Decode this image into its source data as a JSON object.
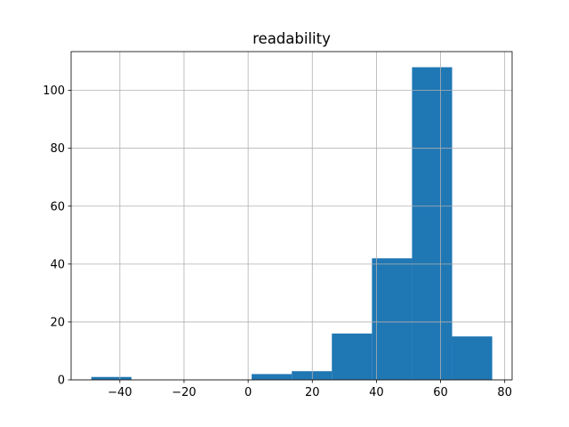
{
  "chart_data": {
    "type": "bar",
    "title": "readability",
    "xlabel": "",
    "ylabel": "",
    "bin_edges": [
      -48.9,
      -36.4,
      -23.9,
      -11.4,
      1.1,
      13.6,
      26.1,
      38.6,
      51.1,
      63.6,
      76.1
    ],
    "values": [
      1,
      0,
      0,
      0,
      2,
      3,
      16,
      42,
      108,
      15
    ],
    "xlim": [
      -55.2,
      82.3
    ],
    "ylim": [
      0,
      113.4
    ],
    "xticks": [
      -40,
      -20,
      0,
      20,
      40,
      60,
      80
    ],
    "xtick_labels": [
      "−40",
      "−20",
      "0",
      "20",
      "40",
      "60",
      "80"
    ],
    "yticks": [
      0,
      20,
      40,
      60,
      80,
      100
    ],
    "ytick_labels": [
      "0",
      "20",
      "40",
      "60",
      "80",
      "100"
    ],
    "grid": true,
    "bar_color": "#1f77b4",
    "grid_color": "#b0b0b0"
  }
}
